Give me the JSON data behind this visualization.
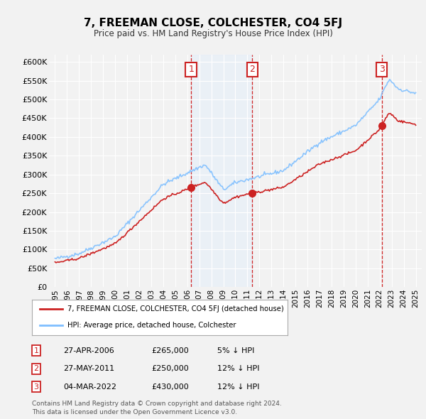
{
  "title": "7, FREEMAN CLOSE, COLCHESTER, CO4 5FJ",
  "subtitle": "Price paid vs. HM Land Registry's House Price Index (HPI)",
  "ylim": [
    0,
    620000
  ],
  "yticks": [
    0,
    50000,
    100000,
    150000,
    200000,
    250000,
    300000,
    350000,
    400000,
    450000,
    500000,
    550000,
    600000
  ],
  "ytick_labels": [
    "£0",
    "£50K",
    "£100K",
    "£150K",
    "£200K",
    "£250K",
    "£300K",
    "£350K",
    "£400K",
    "£450K",
    "£500K",
    "£550K",
    "£600K"
  ],
  "bg_color": "#f2f2f2",
  "plot_bg_color": "#f2f2f2",
  "grid_color": "#ffffff",
  "hpi_color": "#7fbfff",
  "price_color": "#cc2222",
  "sale_marker_color": "#cc2222",
  "vline_color": "#cc0000",
  "shade_color": "#ddeeff",
  "number_box_color": "#cc2222",
  "sales": [
    {
      "date_x": 2006.32,
      "price": 265000,
      "label": "1"
    },
    {
      "date_x": 2011.4,
      "price": 250000,
      "label": "2"
    },
    {
      "date_x": 2022.17,
      "price": 430000,
      "label": "3"
    }
  ],
  "legend_label_price": "7, FREEMAN CLOSE, COLCHESTER, CO4 5FJ (detached house)",
  "legend_label_hpi": "HPI: Average price, detached house, Colchester",
  "table_rows": [
    {
      "num": "1",
      "date": "27-APR-2006",
      "price": "£265,000",
      "hpi": "5% ↓ HPI"
    },
    {
      "num": "2",
      "date": "27-MAY-2011",
      "price": "£250,000",
      "hpi": "12% ↓ HPI"
    },
    {
      "num": "3",
      "date": "04-MAR-2022",
      "price": "£430,000",
      "hpi": "12% ↓ HPI"
    }
  ],
  "footer": "Contains HM Land Registry data © Crown copyright and database right 2024.\nThis data is licensed under the Open Government Licence v3.0.",
  "xmin": 1994.5,
  "xmax": 2025.5
}
